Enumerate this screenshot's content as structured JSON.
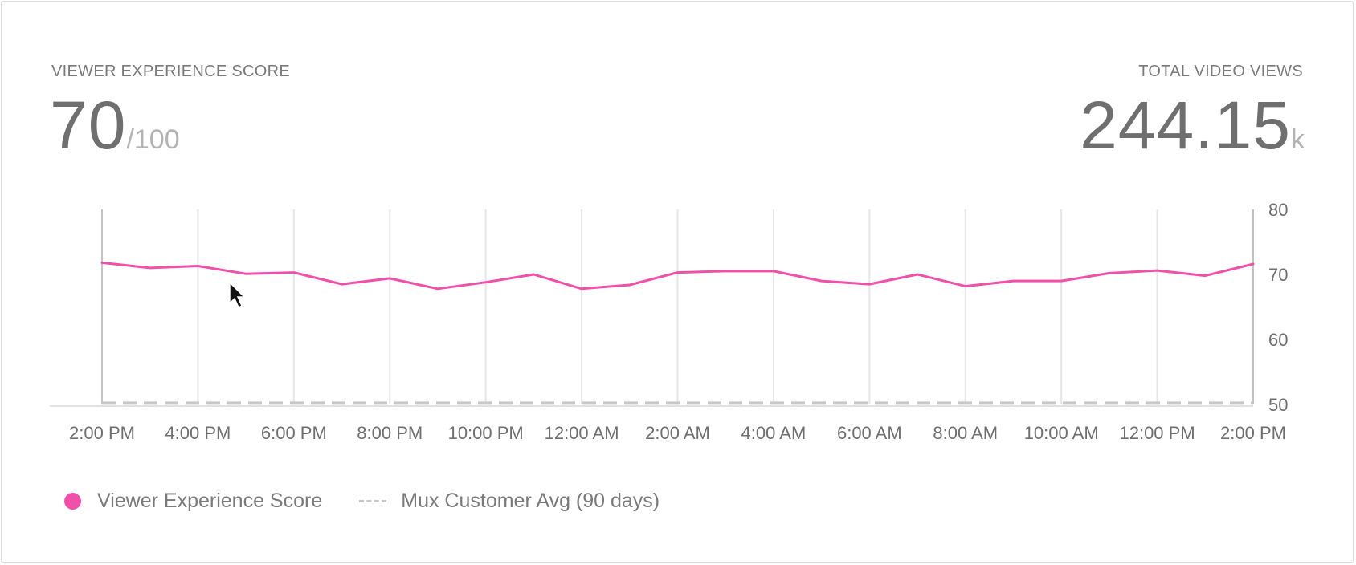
{
  "metrics": {
    "score_label": "VIEWER EXPERIENCE SCORE",
    "score_value": "70",
    "score_max": "/100",
    "views_label": "TOTAL VIDEO VIEWS",
    "views_value": "244.15",
    "views_unit": "k"
  },
  "chart_data": {
    "type": "line",
    "x_tick_labels": [
      "2:00 PM",
      "4:00 PM",
      "6:00 PM",
      "8:00 PM",
      "10:00 PM",
      "12:00 AM",
      "2:00 AM",
      "4:00 AM",
      "6:00 AM",
      "8:00 AM",
      "10:00 AM",
      "12:00 PM",
      "2:00 PM"
    ],
    "y_ticks": [
      50,
      60,
      70,
      80
    ],
    "ylim": [
      50,
      80
    ],
    "y_axis_side": "right",
    "grid": "vertical",
    "legend_position": "bottom-left",
    "series": [
      {
        "name": "Viewer Experience Score",
        "color": "#f050aa",
        "style": "solid",
        "values": [
          71.8,
          71.0,
          71.3,
          70.1,
          70.3,
          68.5,
          69.4,
          67.8,
          68.8,
          70.0,
          67.8,
          68.4,
          70.3,
          70.5,
          70.5,
          69.0,
          68.5,
          70.0,
          68.2,
          69.0,
          69.0,
          70.2,
          70.6,
          69.8,
          71.6
        ]
      },
      {
        "name": "Mux Customer Avg (90 days)",
        "color": "#c8c8c8",
        "style": "dashed",
        "values": [
          50.2,
          50.2
        ]
      }
    ]
  },
  "legend": {
    "series1_label": "Viewer Experience Score",
    "series2_label": "Mux Customer Avg (90 days)"
  }
}
